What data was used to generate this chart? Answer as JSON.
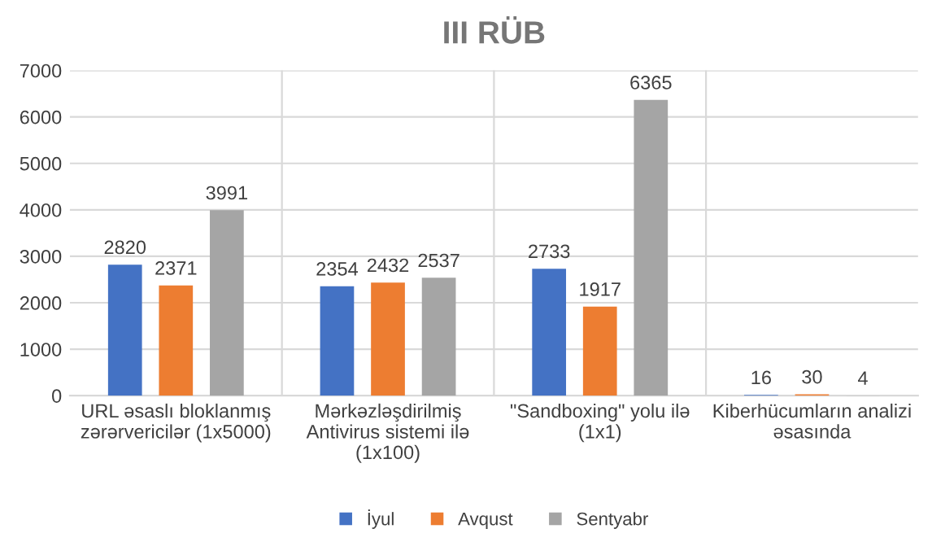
{
  "chart_data": {
    "type": "bar",
    "title": "III RÜB",
    "categories": [
      "URL əsaslı bloklanmış\nzərərvericilər (1x5000)",
      "Mərkəzləşdirilmiş\nAntivirus sistemi ilə\n(1x100)",
      "\"Sandboxing\" yolu ilə\n(1x1)",
      "Kiberhücumların analizi\nəsasında"
    ],
    "series": [
      {
        "name": "İyul",
        "color": "#4472c4",
        "values": [
          2820,
          2354,
          2733,
          16
        ]
      },
      {
        "name": "Avqust",
        "color": "#ed7d31",
        "values": [
          2371,
          2432,
          1917,
          30
        ]
      },
      {
        "name": "Sentyabr",
        "color": "#a5a5a5",
        "values": [
          3991,
          2537,
          6365,
          4
        ]
      }
    ],
    "ylim": [
      0,
      7000
    ],
    "yticks": [
      0,
      1000,
      2000,
      3000,
      4000,
      5000,
      6000,
      7000
    ],
    "grid": true,
    "legend": "bottom",
    "data_labels": true
  }
}
